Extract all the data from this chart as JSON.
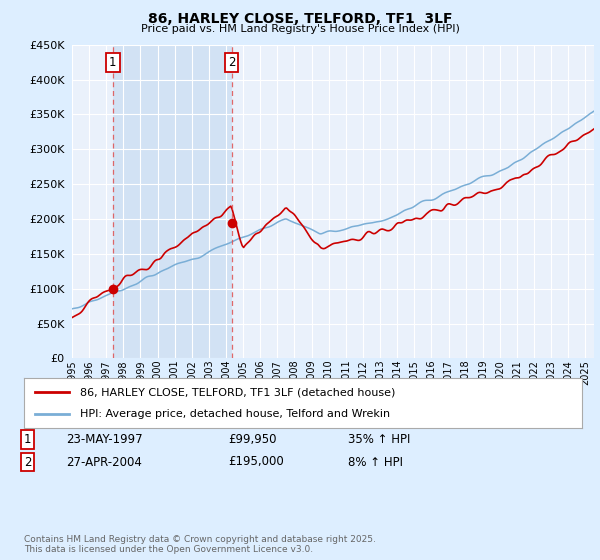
{
  "title": "86, HARLEY CLOSE, TELFORD, TF1  3LF",
  "subtitle": "Price paid vs. HM Land Registry's House Price Index (HPI)",
  "yticks": [
    0,
    50000,
    100000,
    150000,
    200000,
    250000,
    300000,
    350000,
    400000,
    450000
  ],
  "ylim": [
    0,
    450000
  ],
  "xlim_start": 1995.0,
  "xlim_end": 2025.5,
  "xticks": [
    1995,
    1996,
    1997,
    1998,
    1999,
    2000,
    2001,
    2002,
    2003,
    2004,
    2005,
    2006,
    2007,
    2008,
    2009,
    2010,
    2011,
    2012,
    2013,
    2014,
    2015,
    2016,
    2017,
    2018,
    2019,
    2020,
    2021,
    2022,
    2023,
    2024,
    2025
  ],
  "purchase1_x": 1997.39,
  "purchase1_y": 99950,
  "purchase2_x": 2004.32,
  "purchase2_y": 195000,
  "legend1_label": "86, HARLEY CLOSE, TELFORD, TF1 3LF (detached house)",
  "legend2_label": "HPI: Average price, detached house, Telford and Wrekin",
  "purchase1_date": "23-MAY-1997",
  "purchase1_price": "£99,950",
  "purchase1_hpi": "35% ↑ HPI",
  "purchase2_date": "27-APR-2004",
  "purchase2_price": "£195,000",
  "purchase2_hpi": "8% ↑ HPI",
  "footer": "Contains HM Land Registry data © Crown copyright and database right 2025.\nThis data is licensed under the Open Government Licence v3.0.",
  "red_line_color": "#cc0000",
  "blue_line_color": "#7aaed6",
  "bg_color": "#ddeeff",
  "plot_bg_color": "#eaf1fb",
  "shade_color": "#c8ddf2",
  "grid_color": "#ffffff",
  "vline_color": "#e05050"
}
